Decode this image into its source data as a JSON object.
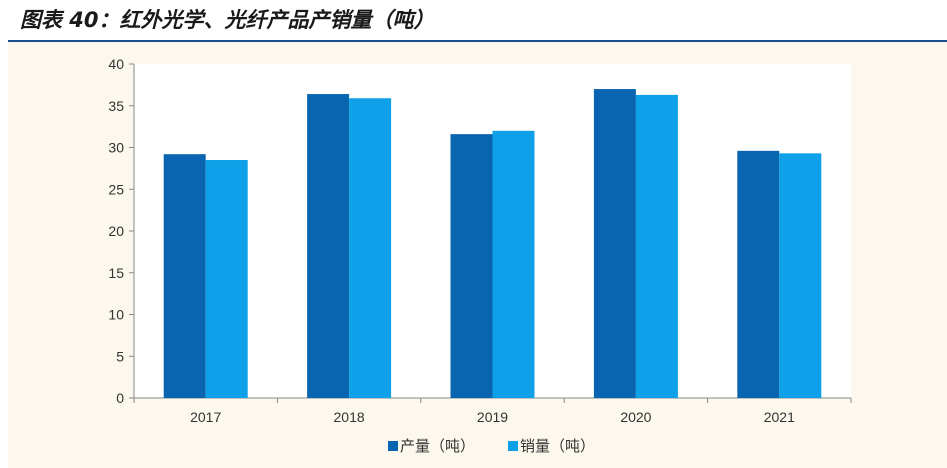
{
  "figure": {
    "title": "图表 40：红外光学、光纤产品产销量（吨）"
  },
  "chart_data": {
    "type": "bar",
    "categories": [
      "2017",
      "2018",
      "2019",
      "2020",
      "2021"
    ],
    "series": [
      {
        "name": "产量（吨）",
        "color": "#0a65b1",
        "values": [
          29.2,
          36.4,
          31.6,
          37.0,
          29.6
        ]
      },
      {
        "name": "销量（吨）",
        "color": "#0ea0e8",
        "values": [
          28.5,
          35.9,
          32.0,
          36.3,
          29.3
        ]
      }
    ],
    "ylim": [
      0,
      40
    ],
    "yticks": [
      0,
      5,
      10,
      15,
      20,
      25,
      30,
      35,
      40
    ],
    "grid": false,
    "legend": "bottom"
  }
}
